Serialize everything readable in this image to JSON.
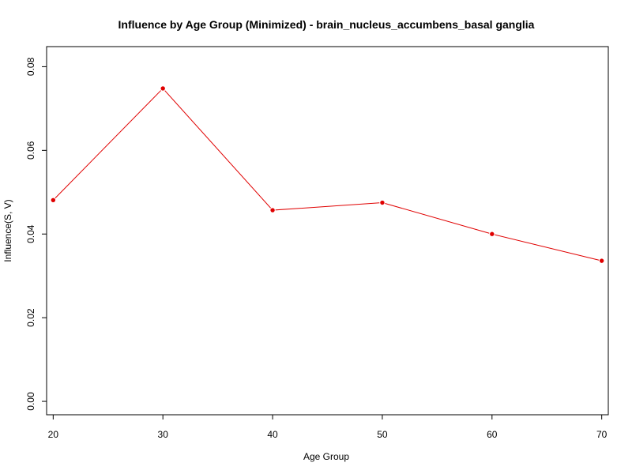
{
  "chart_data": {
    "type": "line",
    "title": "Influence by Age Group (Minimized) - brain_nucleus_accumbens_basal ganglia",
    "xlabel": "Age Group",
    "ylabel": "Influence(S, V)",
    "x": [
      20,
      30,
      40,
      50,
      60,
      70
    ],
    "y": [
      0.0481,
      0.0748,
      0.0457,
      0.0475,
      0.04,
      0.0336
    ],
    "xticks": [
      20,
      30,
      40,
      50,
      60,
      70
    ],
    "xtick_labels": [
      "20",
      "30",
      "40",
      "50",
      "60",
      "70"
    ],
    "yticks": [
      0.0,
      0.02,
      0.04,
      0.06,
      0.08
    ],
    "ytick_labels": [
      "0.00",
      "0.02",
      "0.04",
      "0.06",
      "0.08"
    ],
    "xlim": [
      19.4,
      70.6
    ],
    "ylim": [
      -0.0032,
      0.0848
    ],
    "line_color": "#e00000",
    "marker_color": "#e00000",
    "marker_outline": "#ffffff",
    "axis_color": "#000000",
    "grid": false,
    "legend": "none",
    "box": true
  }
}
